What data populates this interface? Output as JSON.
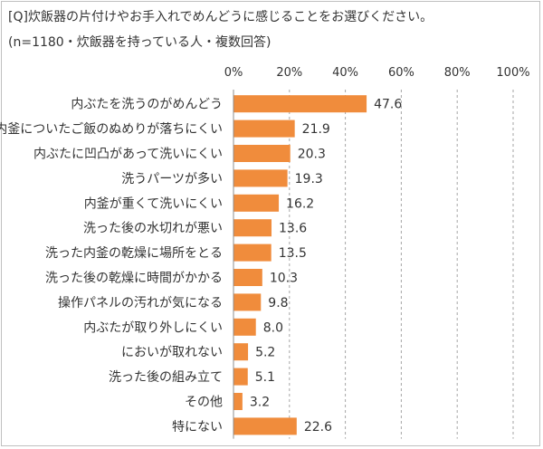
{
  "header": {
    "title": "[Q]炊飯器の片付けやお手入れでめんどうに感じることをお選びください。",
    "subtitle": "(n=1180・炊飯器を持っている人・複数回答)"
  },
  "colors": {
    "bar": "#f08c3c",
    "grid": "#a6a6a6",
    "axis": "#8c8c8c"
  },
  "chart_data": {
    "type": "bar",
    "orientation": "horizontal",
    "title": "[Q]炊飯器の片付けやお手入れでめんどうに感じることをお選びください。",
    "subtitle": "(n=1180・炊飯器を持っている人・複数回答)",
    "xlim": [
      0,
      100
    ],
    "x_ticks": [
      "0%",
      "20%",
      "40%",
      "60%",
      "80%",
      "100%"
    ],
    "x_tick_values": [
      0,
      20,
      40,
      60,
      80,
      100
    ],
    "grid": "vertical dashed",
    "categories": [
      "内ぶたを洗うのがめんどう",
      "内釜についたご飯のぬめりが落ちにくい",
      "内ぶたに凹凸があって洗いにくい",
      "洗うパーツが多い",
      "内釜が重くて洗いにくい",
      "洗った後の水切れが悪い",
      "洗った内釜の乾燥に場所をとる",
      "洗った後の乾燥に時間がかかる",
      "操作パネルの汚れが気になる",
      "内ぶたが取り外しにくい",
      "においが取れない",
      "洗った後の組み立て",
      "その他",
      "特にない"
    ],
    "values": [
      47.6,
      21.9,
      20.3,
      19.3,
      16.2,
      13.6,
      13.5,
      10.3,
      9.8,
      8.0,
      5.2,
      5.1,
      3.2,
      22.6
    ],
    "value_labels": [
      "47.6",
      "21.9",
      "20.3",
      "19.3",
      "16.2",
      "13.6",
      "13.5",
      "10.3",
      "9.8",
      "8.0",
      "5.2",
      "5.1",
      "3.2",
      "22.6"
    ]
  }
}
